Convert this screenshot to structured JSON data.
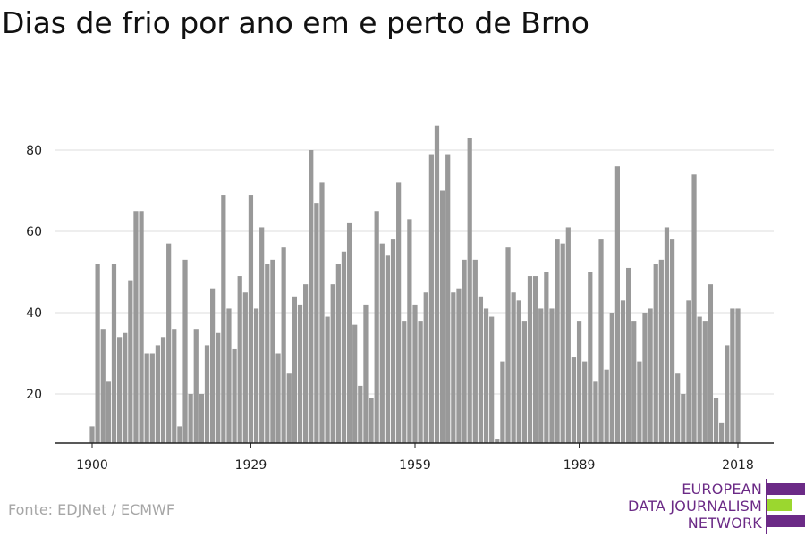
{
  "chart_data": {
    "type": "bar",
    "title": "Dias de frio por ano em e perto de Brno",
    "x_start": 1900,
    "x_end": 2018,
    "values": [
      12,
      52,
      36,
      23,
      52,
      34,
      35,
      48,
      65,
      65,
      30,
      30,
      32,
      34,
      57,
      36,
      12,
      53,
      20,
      36,
      20,
      32,
      46,
      35,
      69,
      41,
      31,
      49,
      45,
      69,
      41,
      61,
      52,
      53,
      30,
      56,
      25,
      44,
      42,
      47,
      80,
      67,
      72,
      39,
      47,
      52,
      55,
      62,
      37,
      22,
      42,
      19,
      65,
      57,
      54,
      58,
      72,
      38,
      63,
      42,
      38,
      45,
      79,
      86,
      70,
      79,
      45,
      46,
      53,
      83,
      53,
      44,
      41,
      39,
      9,
      28,
      56,
      45,
      43,
      38,
      49,
      49,
      41,
      50,
      41,
      58,
      57,
      61,
      29,
      38,
      28,
      50,
      23,
      58,
      26,
      40,
      76,
      43,
      51,
      38,
      28,
      40,
      41,
      52,
      53,
      61,
      58,
      25,
      20,
      43,
      74,
      39,
      38,
      47,
      19,
      13,
      32,
      41,
      41
    ],
    "x_ticks": [
      "1900",
      "1929",
      "1959",
      "1989",
      "2018"
    ],
    "x_tick_years": [
      1900,
      1929,
      1959,
      1989,
      2018
    ],
    "y_ticks": [
      "20",
      "40",
      "60",
      "80"
    ],
    "y_tick_values": [
      20,
      40,
      60,
      80
    ],
    "ylim": [
      8,
      95
    ],
    "bar_color": "#999999",
    "grid": true,
    "source": "Fonte: EDJNet / ECMWF"
  },
  "logo": {
    "line1": "EUROPEAN",
    "line2": "DATA JOURNALISM",
    "line3": "NETWORK",
    "purple": "#6b2a86",
    "green": "#9bd72f"
  }
}
